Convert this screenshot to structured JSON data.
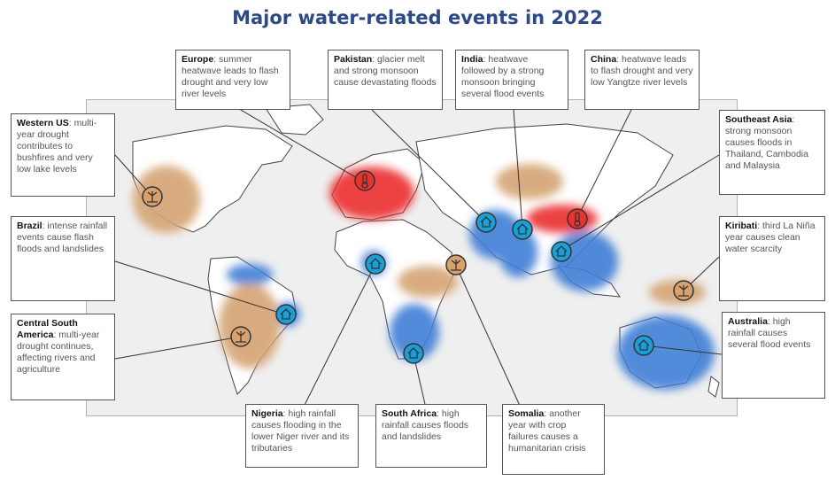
{
  "title": "Major water-related events in 2022",
  "colors": {
    "drought": "#d4a473",
    "flood": "#3f7fd6",
    "heat": "#ea2d2d",
    "icon": "#1aa0d8",
    "title": "#2e4a86"
  },
  "icons": {
    "flood": "house-icon",
    "drought": "plant-icon",
    "heat": "thermometer-icon"
  },
  "events": [
    {
      "region": "Western US",
      "text": ": multi-year drought contributes to bushfires and very low lake levels",
      "type": "drought"
    },
    {
      "region": "Europe",
      "text": ": summer heatwave leads to flash drought and very low river levels",
      "type": "heat"
    },
    {
      "region": "Pakistan",
      "text": ": glacier melt and strong monsoon cause devastating floods",
      "type": "flood"
    },
    {
      "region": "India",
      "text": ": heatwave followed by a strong monsoon bringing several flood events",
      "type": "flood"
    },
    {
      "region": "China",
      "text": ": heatwave leads to flash drought and very low Yangtze river levels",
      "type": "heat"
    },
    {
      "region": "Southeast Asia",
      "text": ": strong monsoon causes floods in Thailand, Cambodia and Malaysia",
      "type": "flood"
    },
    {
      "region": "Brazil",
      "text": ": intense rainfall events cause flash floods and landslides",
      "type": "flood"
    },
    {
      "region": "Kiribati",
      "text": ": third La Niña year causes clean water scarcity",
      "type": "drought"
    },
    {
      "region": "Central South America",
      "text": ": multi-year drought continues, affecting rivers and agriculture",
      "type": "drought"
    },
    {
      "region": "Australia",
      "text": ": high rainfall causes several flood events",
      "type": "flood"
    },
    {
      "region": "Nigeria",
      "text": ": high rainfall causes flooding in the lower Niger river and its tributaries",
      "type": "flood"
    },
    {
      "region": "South Africa",
      "text": ": high rainfall causes floods and landslides",
      "type": "flood"
    },
    {
      "region": "Somalia",
      "text": ": another year with crop failures causes a humanitarian crisis",
      "type": "drought"
    }
  ]
}
